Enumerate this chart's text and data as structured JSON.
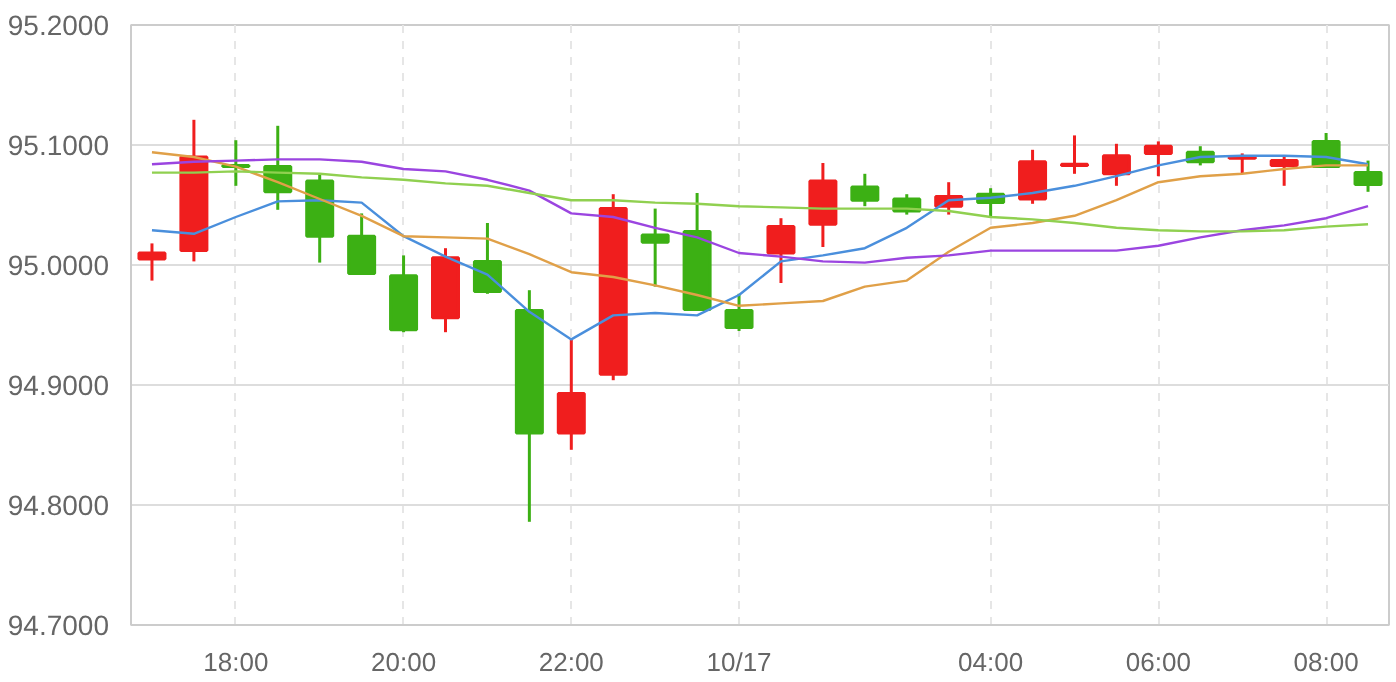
{
  "chart_data": {
    "type": "candlestick",
    "categories": [
      null,
      null,
      "18:00",
      null,
      null,
      null,
      "20:00",
      null,
      null,
      null,
      "22:00",
      null,
      null,
      null,
      "10/17",
      null,
      null,
      null,
      null,
      null,
      "04:00",
      null,
      null,
      null,
      "06:00",
      null,
      null,
      null,
      "08:00",
      null
    ],
    "ohlc": [
      [
        95.005,
        95.018,
        94.987,
        95.01
      ],
      [
        95.012,
        95.121,
        95.003,
        95.09
      ],
      [
        95.083,
        95.104,
        95.066,
        95.082
      ],
      [
        95.082,
        95.116,
        95.046,
        95.061
      ],
      [
        95.07,
        95.075,
        95.002,
        95.024
      ],
      [
        95.024,
        95.043,
        94.992,
        94.993
      ],
      [
        94.991,
        95.008,
        94.944,
        94.946
      ],
      [
        94.956,
        95.014,
        94.944,
        95.006
      ],
      [
        95.003,
        95.035,
        94.976,
        94.978
      ],
      [
        94.962,
        94.979,
        94.786,
        94.86
      ],
      [
        94.86,
        94.938,
        94.846,
        94.893
      ],
      [
        94.909,
        95.059,
        94.904,
        95.047
      ],
      [
        95.025,
        95.047,
        94.982,
        95.019
      ],
      [
        95.028,
        95.06,
        94.962,
        94.963
      ],
      [
        94.962,
        94.976,
        94.945,
        94.948
      ],
      [
        95.01,
        95.039,
        94.985,
        95.032
      ],
      [
        95.034,
        95.085,
        95.015,
        95.07
      ],
      [
        95.065,
        95.076,
        95.049,
        95.054
      ],
      [
        95.055,
        95.059,
        95.042,
        95.045
      ],
      [
        95.049,
        95.069,
        95.042,
        95.057
      ],
      [
        95.059,
        95.064,
        95.04,
        95.052
      ],
      [
        95.055,
        95.096,
        95.051,
        95.086
      ],
      [
        95.083,
        95.108,
        95.076,
        95.084
      ],
      [
        95.076,
        95.101,
        95.066,
        95.091
      ],
      [
        95.093,
        95.103,
        95.074,
        95.099
      ],
      [
        95.094,
        95.099,
        95.083,
        95.086
      ],
      [
        95.089,
        95.093,
        95.076,
        95.09
      ],
      [
        95.083,
        95.091,
        95.066,
        95.087
      ],
      [
        95.103,
        95.11,
        95.082,
        95.082
      ],
      [
        95.077,
        95.087,
        95.061,
        95.067
      ]
    ],
    "colors": [
      "#f01e1e",
      "#f01e1e",
      "#3cb014",
      "#3cb014",
      "#3cb014",
      "#3cb014",
      "#3cb014",
      "#f01e1e",
      "#3cb014",
      "#3cb014",
      "#f01e1e",
      "#f01e1e",
      "#3cb014",
      "#3cb014",
      "#3cb014",
      "#f01e1e",
      "#f01e1e",
      "#3cb014",
      "#3cb014",
      "#f01e1e",
      "#3cb014",
      "#f01e1e",
      "#f01e1e",
      "#f01e1e",
      "#f01e1e",
      "#3cb014",
      "#f01e1e",
      "#f01e1e",
      "#3cb014",
      "#3cb014"
    ],
    "series": [
      {
        "type": "line",
        "color": "#4a8fdc",
        "values": [
          95.029,
          95.026,
          95.04,
          95.053,
          95.054,
          95.052,
          95.024,
          95.007,
          94.992,
          94.961,
          94.938,
          94.958,
          94.96,
          94.958,
          94.975,
          95.003,
          95.008,
          95.014,
          95.031,
          95.054,
          95.056,
          95.06,
          95.066,
          95.074,
          95.083,
          95.09,
          95.091,
          95.091,
          95.09,
          95.084
        ]
      },
      {
        "type": "line",
        "color": "#e0a048",
        "values": [
          95.094,
          95.09,
          95.082,
          95.069,
          95.055,
          95.041,
          95.024,
          95.023,
          95.022,
          95.009,
          94.994,
          94.99,
          94.983,
          94.975,
          94.966,
          94.968,
          94.97,
          94.982,
          94.987,
          95.011,
          95.031,
          95.035,
          95.041,
          95.054,
          95.069,
          95.074,
          95.076,
          95.08,
          95.083,
          95.083
        ]
      },
      {
        "type": "line",
        "color": "#9b45e0",
        "values": [
          95.084,
          95.086,
          95.087,
          95.088,
          95.088,
          95.086,
          95.08,
          95.078,
          95.071,
          95.062,
          95.043,
          95.04,
          95.031,
          95.023,
          95.01,
          95.007,
          95.003,
          95.002,
          95.006,
          95.008,
          95.012,
          95.012,
          95.012,
          95.012,
          95.016,
          95.023,
          95.029,
          95.033,
          95.039,
          95.049
        ]
      },
      {
        "type": "line",
        "color": "#90d050",
        "values": [
          95.077,
          95.077,
          95.078,
          95.077,
          95.076,
          95.073,
          95.071,
          95.068,
          95.066,
          95.06,
          95.054,
          95.054,
          95.052,
          95.051,
          95.049,
          95.048,
          95.047,
          95.047,
          95.047,
          95.045,
          95.04,
          95.038,
          95.035,
          95.031,
          95.029,
          95.028,
          95.028,
          95.029,
          95.032,
          95.034
        ]
      }
    ],
    "ylim": [
      94.7,
      95.2
    ],
    "yticks": [
      {
        "value": 94.7,
        "label": "94.7000"
      },
      {
        "value": 94.8,
        "label": "94.8000"
      },
      {
        "value": 94.9,
        "label": "94.9000"
      },
      {
        "value": 95.0,
        "label": "95.0000"
      },
      {
        "value": 95.1,
        "label": "95.1000"
      },
      {
        "value": 95.2,
        "label": "95.2000"
      }
    ],
    "grid": true,
    "line_style": "solid",
    "marker": "none"
  }
}
